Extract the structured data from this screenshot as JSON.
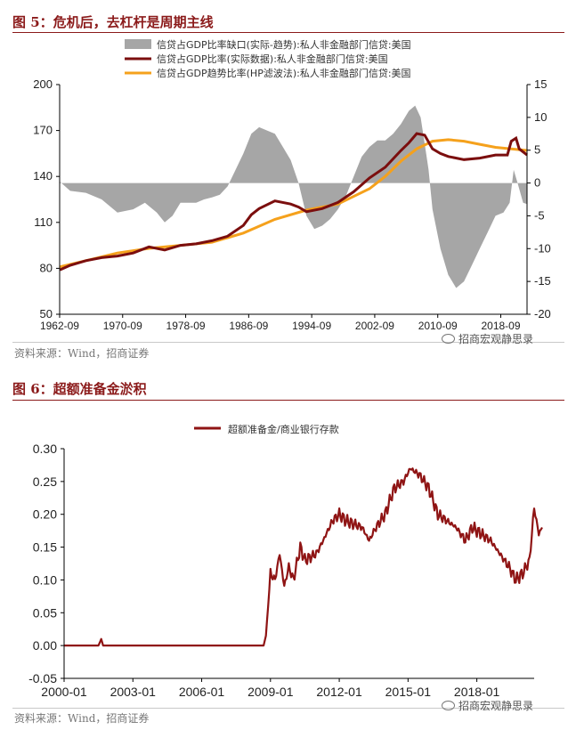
{
  "figure5": {
    "title": "图 5：危机后，去杠杆是周期主线",
    "source": "资料来源：Wind，招商证券",
    "watermark": "招商宏观静思录"
  },
  "figure6": {
    "title": "图 6：超额准备金淤积",
    "source": "资料来源：Wind，招商证券",
    "watermark": "招商宏观静思录"
  },
  "colors": {
    "gap": "#a6a6a6",
    "actual": "#7b0e0e",
    "trend": "#f5a11c",
    "ratio": "#8f1414",
    "heading": "#8B1A1A"
  },
  "chart_data": [
    {
      "type": "area",
      "legend_position": "top",
      "grid": false,
      "x_ticks": [
        "1962-09",
        "1970-09",
        "1978-09",
        "1986-09",
        "1994-09",
        "2002-09",
        "2010-09",
        "2018-09"
      ],
      "xlim": [
        1962.67,
        2022.0
      ],
      "y_left": {
        "lim": [
          50,
          200
        ],
        "ticks": [
          "50",
          "80",
          "110",
          "140",
          "170",
          "200"
        ]
      },
      "y_right": {
        "lim": [
          -20,
          15
        ],
        "ticks": [
          "-20",
          "-15",
          "-10",
          "-5",
          "0",
          "5",
          "10",
          "15"
        ]
      },
      "series": [
        {
          "name": "信贷占GDP比率缺口(实际-趋势):私人非金融部门信贷:美国",
          "type": "area",
          "axis": "right",
          "points": [
            [
              1962.7,
              0.2
            ],
            [
              1964,
              -1.2
            ],
            [
              1966,
              -1.5
            ],
            [
              1968,
              -2.5
            ],
            [
              1970,
              -4.5
            ],
            [
              1972,
              -4
            ],
            [
              1973.5,
              -3
            ],
            [
              1975,
              -4.5
            ],
            [
              1976,
              -6
            ],
            [
              1977,
              -5
            ],
            [
              1978,
              -3
            ],
            [
              1980,
              -3
            ],
            [
              1981,
              -2.5
            ],
            [
              1982,
              -2.2
            ],
            [
              1983,
              -1.8
            ],
            [
              1984,
              -0.5
            ],
            [
              1985,
              2
            ],
            [
              1986,
              4.5
            ],
            [
              1987,
              7.5
            ],
            [
              1988,
              8.5
            ],
            [
              1989,
              8
            ],
            [
              1990,
              7.5
            ],
            [
              1991,
              5.5
            ],
            [
              1992,
              3.5
            ],
            [
              1993,
              0
            ],
            [
              1994,
              -5
            ],
            [
              1995,
              -7
            ],
            [
              1996,
              -6.5
            ],
            [
              1997,
              -5.5
            ],
            [
              1998,
              -4
            ],
            [
              1999,
              -2
            ],
            [
              2000,
              1
            ],
            [
              2001,
              4
            ],
            [
              2002,
              5.5
            ],
            [
              2003,
              6.5
            ],
            [
              2004,
              6.5
            ],
            [
              2005,
              7.5
            ],
            [
              2006,
              9
            ],
            [
              2007,
              11
            ],
            [
              2007.8,
              11.8
            ],
            [
              2008.5,
              10
            ],
            [
              2009,
              6
            ],
            [
              2009.5,
              2
            ],
            [
              2010,
              -4
            ],
            [
              2011,
              -10
            ],
            [
              2012,
              -14
            ],
            [
              2013,
              -16
            ],
            [
              2014,
              -15
            ],
            [
              2015,
              -12.5
            ],
            [
              2016,
              -10
            ],
            [
              2017,
              -7.5
            ],
            [
              2018,
              -5
            ],
            [
              2019,
              -4.5
            ],
            [
              2019.8,
              -3
            ],
            [
              2020.3,
              2
            ],
            [
              2020.8,
              0
            ],
            [
              2021.5,
              -3
            ],
            [
              2022,
              -3.2
            ]
          ]
        },
        {
          "name": "信贷占GDP比率(实际数据):私人非金融部门信贷:美国",
          "type": "line",
          "axis": "left",
          "points": [
            [
              1962.7,
              79
            ],
            [
              1964,
              82
            ],
            [
              1966,
              85
            ],
            [
              1968,
              87
            ],
            [
              1970,
              88
            ],
            [
              1972,
              90
            ],
            [
              1974,
              94
            ],
            [
              1976,
              92
            ],
            [
              1978,
              95
            ],
            [
              1980,
              96
            ],
            [
              1982,
              98
            ],
            [
              1984,
              101
            ],
            [
              1986,
              108
            ],
            [
              1987,
              115
            ],
            [
              1988,
              119
            ],
            [
              1990,
              124
            ],
            [
              1992,
              122
            ],
            [
              1993,
              120
            ],
            [
              1994,
              117
            ],
            [
              1996,
              119
            ],
            [
              1998,
              123
            ],
            [
              2000,
              130
            ],
            [
              2002,
              139
            ],
            [
              2004,
              146
            ],
            [
              2006,
              157
            ],
            [
              2007,
              162
            ],
            [
              2008,
              168
            ],
            [
              2009,
              167
            ],
            [
              2010,
              158
            ],
            [
              2011,
              155
            ],
            [
              2012,
              153
            ],
            [
              2014,
              151
            ],
            [
              2016,
              152
            ],
            [
              2018,
              154
            ],
            [
              2019.5,
              154
            ],
            [
              2020,
              163
            ],
            [
              2020.6,
              165
            ],
            [
              2021,
              158
            ],
            [
              2022,
              154
            ]
          ]
        },
        {
          "name": "信贷占GDP趋势比率(HP滤波法):私人非金融部门信贷:美国",
          "type": "line",
          "axis": "left",
          "points": [
            [
              1962.7,
              81
            ],
            [
              1966,
              85
            ],
            [
              1970,
              90
            ],
            [
              1974,
              93
            ],
            [
              1978,
              95
            ],
            [
              1982,
              97
            ],
            [
              1986,
              103
            ],
            [
              1990,
              112
            ],
            [
              1994,
              118
            ],
            [
              1998,
              122
            ],
            [
              2002,
              132
            ],
            [
              2004,
              140
            ],
            [
              2006,
              150
            ],
            [
              2008,
              158
            ],
            [
              2010,
              163
            ],
            [
              2012,
              164
            ],
            [
              2014,
              163
            ],
            [
              2016,
              161
            ],
            [
              2018,
              159
            ],
            [
              2020,
              158
            ],
            [
              2022,
              157
            ]
          ]
        }
      ]
    },
    {
      "type": "line",
      "legend_position": "top",
      "grid": false,
      "x_ticks": [
        "2000-01",
        "2003-01",
        "2006-01",
        "2009-01",
        "2012-01",
        "2015-01",
        "2018-01"
      ],
      "xlim": [
        2000.0,
        2020.5
      ],
      "ylim": [
        -0.05,
        0.3
      ],
      "y_ticks": [
        "-0.05",
        "0.00",
        "0.05",
        "0.10",
        "0.15",
        "0.20",
        "0.25",
        "0.30"
      ],
      "series": [
        {
          "name": "超额准备金/商业银行存款",
          "points": [
            [
              2000.0,
              0.0
            ],
            [
              2001.5,
              0.0
            ],
            [
              2001.62,
              0.01
            ],
            [
              2001.7,
              0.0
            ],
            [
              2008.7,
              0.0
            ],
            [
              2008.8,
              0.015
            ],
            [
              2008.9,
              0.06
            ],
            [
              2009.0,
              0.11
            ],
            [
              2009.2,
              0.1
            ],
            [
              2009.4,
              0.14
            ],
            [
              2009.6,
              0.09
            ],
            [
              2009.8,
              0.12
            ],
            [
              2010.0,
              0.1
            ],
            [
              2010.3,
              0.15
            ],
            [
              2010.5,
              0.13
            ],
            [
              2011.0,
              0.14
            ],
            [
              2011.3,
              0.16
            ],
            [
              2011.7,
              0.19
            ],
            [
              2012.0,
              0.2
            ],
            [
              2012.3,
              0.19
            ],
            [
              2013.0,
              0.18
            ],
            [
              2013.3,
              0.16
            ],
            [
              2013.6,
              0.18
            ],
            [
              2014.0,
              0.2
            ],
            [
              2014.4,
              0.24
            ],
            [
              2014.8,
              0.25
            ],
            [
              2015.1,
              0.27
            ],
            [
              2015.5,
              0.26
            ],
            [
              2015.9,
              0.24
            ],
            [
              2016.3,
              0.2
            ],
            [
              2016.7,
              0.19
            ],
            [
              2017.1,
              0.18
            ],
            [
              2017.5,
              0.16
            ],
            [
              2017.8,
              0.18
            ],
            [
              2018.2,
              0.17
            ],
            [
              2018.6,
              0.16
            ],
            [
              2019.0,
              0.14
            ],
            [
              2019.4,
              0.12
            ],
            [
              2019.7,
              0.1
            ],
            [
              2020.0,
              0.11
            ],
            [
              2020.3,
              0.13
            ],
            [
              2020.5,
              0.21
            ],
            [
              2020.7,
              0.17
            ],
            [
              2020.85,
              0.18
            ]
          ]
        }
      ]
    }
  ]
}
